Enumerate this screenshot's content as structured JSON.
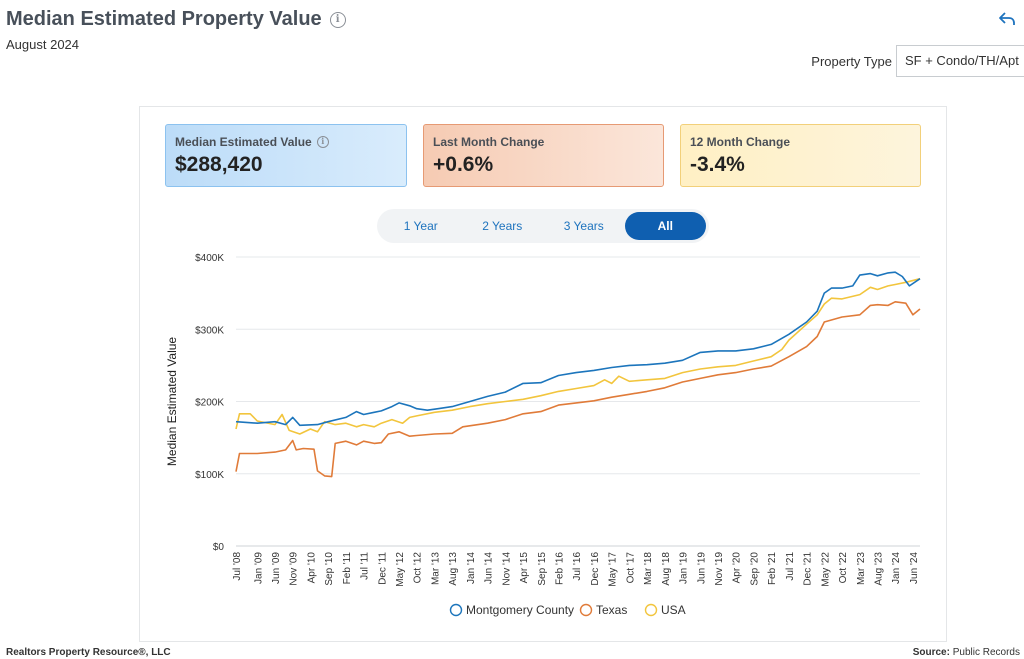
{
  "header": {
    "title": "Median Estimated Property Value",
    "subtitle": "August 2024"
  },
  "property_type": {
    "label": "Property Type",
    "value": "SF + Condo/TH/Apt"
  },
  "stats": [
    {
      "label": "Median Estimated Value",
      "value": "$288,420"
    },
    {
      "label": "Last Month Change",
      "value": "+0.6%"
    },
    {
      "label": "12 Month Change",
      "value": "-3.4%"
    }
  ],
  "tabs": [
    {
      "label": "1 Year",
      "active": false
    },
    {
      "label": "2 Years",
      "active": false
    },
    {
      "label": "3 Years",
      "active": false
    },
    {
      "label": "All",
      "active": true
    }
  ],
  "footer": {
    "left": "Realtors Property Resource®, LLC",
    "source_label": "Source:",
    "source_value": "Public Records"
  },
  "chart_data": {
    "type": "line",
    "ylabel": "Median Estimated Value",
    "ylim": [
      0,
      400000
    ],
    "y_ticks": [
      0,
      100000,
      200000,
      300000,
      400000
    ],
    "y_tick_labels": [
      "$0",
      "$100K",
      "$200K",
      "$300K",
      "$400K"
    ],
    "x_range": [
      "2008-07",
      "2024-08"
    ],
    "x_tick_labels": [
      "Jul '08",
      "Jan '09",
      "Jun '09",
      "Nov '09",
      "Apr '10",
      "Sep '10",
      "Feb '11",
      "Jul '11",
      "Dec '11",
      "May '12",
      "Oct '12",
      "Mar '13",
      "Aug '13",
      "Jan '14",
      "Jun '14",
      "Nov '14",
      "Apr '15",
      "Sep '15",
      "Feb '16",
      "Jul '16",
      "Dec '16",
      "May '17",
      "Oct '17",
      "Mar '18",
      "Aug '18",
      "Jan '19",
      "Jun '19",
      "Nov '19",
      "Apr '20",
      "Sep '20",
      "Feb '21",
      "Jul '21",
      "Dec '21",
      "May '22",
      "Oct '22",
      "Mar '23",
      "Aug '23",
      "Jan '24",
      "Jun '24"
    ],
    "x_ticks": [
      "2008-07",
      "2009-01",
      "2009-06",
      "2009-11",
      "2010-04",
      "2010-09",
      "2011-02",
      "2011-07",
      "2011-12",
      "2012-05",
      "2012-10",
      "2013-03",
      "2013-08",
      "2014-01",
      "2014-06",
      "2014-11",
      "2015-04",
      "2015-09",
      "2016-02",
      "2016-07",
      "2016-12",
      "2017-05",
      "2017-10",
      "2018-03",
      "2018-08",
      "2019-01",
      "2019-06",
      "2019-11",
      "2020-04",
      "2020-09",
      "2021-02",
      "2021-07",
      "2021-12",
      "2022-05",
      "2022-10",
      "2023-03",
      "2023-08",
      "2024-01",
      "2024-06"
    ],
    "grid": true,
    "legend_position": "bottom",
    "series": [
      {
        "name": "Montgomery County",
        "color": "#1c75bc",
        "points": [
          [
            "2008-07",
            172000
          ],
          [
            "2009-01",
            170000
          ],
          [
            "2009-06",
            172000
          ],
          [
            "2009-09",
            168000
          ],
          [
            "2009-11",
            178000
          ],
          [
            "2010-01",
            167000
          ],
          [
            "2010-06",
            168000
          ],
          [
            "2010-09",
            172000
          ],
          [
            "2011-02",
            178000
          ],
          [
            "2011-05",
            186000
          ],
          [
            "2011-07",
            182000
          ],
          [
            "2011-10",
            185000
          ],
          [
            "2011-12",
            187000
          ],
          [
            "2012-03",
            193000
          ],
          [
            "2012-05",
            198000
          ],
          [
            "2012-08",
            194000
          ],
          [
            "2012-10",
            190000
          ],
          [
            "2013-01",
            188000
          ],
          [
            "2013-04",
            190000
          ],
          [
            "2013-08",
            193000
          ],
          [
            "2014-01",
            200000
          ],
          [
            "2014-06",
            207000
          ],
          [
            "2014-11",
            213000
          ],
          [
            "2015-04",
            225000
          ],
          [
            "2015-09",
            226000
          ],
          [
            "2016-02",
            236000
          ],
          [
            "2016-07",
            240000
          ],
          [
            "2016-12",
            243000
          ],
          [
            "2017-05",
            247000
          ],
          [
            "2017-10",
            250000
          ],
          [
            "2018-03",
            251000
          ],
          [
            "2018-08",
            253000
          ],
          [
            "2019-01",
            257000
          ],
          [
            "2019-06",
            268000
          ],
          [
            "2019-11",
            270000
          ],
          [
            "2020-04",
            270000
          ],
          [
            "2020-09",
            273000
          ],
          [
            "2021-02",
            279000
          ],
          [
            "2021-07",
            293000
          ],
          [
            "2021-12",
            310000
          ],
          [
            "2022-03",
            325000
          ],
          [
            "2022-05",
            350000
          ],
          [
            "2022-07",
            357000
          ],
          [
            "2022-10",
            357000
          ],
          [
            "2023-01",
            360000
          ],
          [
            "2023-03",
            375000
          ],
          [
            "2023-06",
            377000
          ],
          [
            "2023-08",
            374000
          ],
          [
            "2023-11",
            378000
          ],
          [
            "2024-01",
            379000
          ],
          [
            "2024-03",
            373000
          ],
          [
            "2024-05",
            360000
          ],
          [
            "2024-08",
            370000
          ]
        ]
      },
      {
        "name": "Texas",
        "color": "#e07b39",
        "points": [
          [
            "2008-07",
            103000
          ],
          [
            "2008-08",
            128000
          ],
          [
            "2009-01",
            128000
          ],
          [
            "2009-06",
            130000
          ],
          [
            "2009-09",
            133000
          ],
          [
            "2009-11",
            146000
          ],
          [
            "2009-12",
            133000
          ],
          [
            "2010-02",
            135000
          ],
          [
            "2010-05",
            134000
          ],
          [
            "2010-06",
            104000
          ],
          [
            "2010-08",
            97000
          ],
          [
            "2010-10",
            96000
          ],
          [
            "2010-11",
            142000
          ],
          [
            "2011-02",
            145000
          ],
          [
            "2011-05",
            140000
          ],
          [
            "2011-07",
            145000
          ],
          [
            "2011-10",
            142000
          ],
          [
            "2011-12",
            143000
          ],
          [
            "2012-02",
            155000
          ],
          [
            "2012-05",
            158000
          ],
          [
            "2012-08",
            152000
          ],
          [
            "2012-10",
            153000
          ],
          [
            "2013-03",
            155000
          ],
          [
            "2013-08",
            156000
          ],
          [
            "2013-11",
            165000
          ],
          [
            "2014-06",
            170000
          ],
          [
            "2014-11",
            175000
          ],
          [
            "2015-04",
            183000
          ],
          [
            "2015-09",
            186000
          ],
          [
            "2016-02",
            195000
          ],
          [
            "2016-07",
            198000
          ],
          [
            "2016-12",
            201000
          ],
          [
            "2017-05",
            206000
          ],
          [
            "2017-10",
            210000
          ],
          [
            "2018-03",
            214000
          ],
          [
            "2018-08",
            219000
          ],
          [
            "2019-01",
            227000
          ],
          [
            "2019-06",
            232000
          ],
          [
            "2019-11",
            237000
          ],
          [
            "2020-04",
            240000
          ],
          [
            "2020-09",
            245000
          ],
          [
            "2021-02",
            249000
          ],
          [
            "2021-07",
            262000
          ],
          [
            "2021-12",
            276000
          ],
          [
            "2022-03",
            290000
          ],
          [
            "2022-05",
            310000
          ],
          [
            "2022-10",
            317000
          ],
          [
            "2023-03",
            320000
          ],
          [
            "2023-06",
            333000
          ],
          [
            "2023-08",
            334000
          ],
          [
            "2023-11",
            333000
          ],
          [
            "2024-01",
            338000
          ],
          [
            "2024-04",
            336000
          ],
          [
            "2024-06",
            320000
          ],
          [
            "2024-08",
            328000
          ]
        ]
      },
      {
        "name": "USA",
        "color": "#f2c53d",
        "points": [
          [
            "2008-07",
            162000
          ],
          [
            "2008-08",
            183000
          ],
          [
            "2008-11",
            183000
          ],
          [
            "2009-01",
            173000
          ],
          [
            "2009-06",
            168000
          ],
          [
            "2009-08",
            182000
          ],
          [
            "2009-10",
            160000
          ],
          [
            "2010-01",
            155000
          ],
          [
            "2010-04",
            162000
          ],
          [
            "2010-06",
            158000
          ],
          [
            "2010-08",
            172000
          ],
          [
            "2010-11",
            168000
          ],
          [
            "2011-02",
            170000
          ],
          [
            "2011-05",
            165000
          ],
          [
            "2011-07",
            168000
          ],
          [
            "2011-10",
            165000
          ],
          [
            "2011-12",
            170000
          ],
          [
            "2012-03",
            175000
          ],
          [
            "2012-06",
            170000
          ],
          [
            "2012-08",
            178000
          ],
          [
            "2012-10",
            180000
          ],
          [
            "2013-03",
            185000
          ],
          [
            "2013-08",
            188000
          ],
          [
            "2014-01",
            193000
          ],
          [
            "2014-06",
            197000
          ],
          [
            "2014-11",
            200000
          ],
          [
            "2015-04",
            203000
          ],
          [
            "2015-09",
            208000
          ],
          [
            "2016-02",
            214000
          ],
          [
            "2016-07",
            218000
          ],
          [
            "2016-12",
            222000
          ],
          [
            "2017-03",
            230000
          ],
          [
            "2017-05",
            225000
          ],
          [
            "2017-07",
            235000
          ],
          [
            "2017-10",
            228000
          ],
          [
            "2018-03",
            230000
          ],
          [
            "2018-08",
            232000
          ],
          [
            "2019-01",
            240000
          ],
          [
            "2019-06",
            245000
          ],
          [
            "2019-11",
            248000
          ],
          [
            "2020-04",
            250000
          ],
          [
            "2020-09",
            256000
          ],
          [
            "2021-02",
            262000
          ],
          [
            "2021-05",
            272000
          ],
          [
            "2021-07",
            285000
          ],
          [
            "2021-12",
            307000
          ],
          [
            "2022-03",
            320000
          ],
          [
            "2022-05",
            335000
          ],
          [
            "2022-07",
            343000
          ],
          [
            "2022-10",
            342000
          ],
          [
            "2023-03",
            348000
          ],
          [
            "2023-06",
            358000
          ],
          [
            "2023-08",
            355000
          ],
          [
            "2023-11",
            360000
          ],
          [
            "2024-01",
            362000
          ],
          [
            "2024-04",
            365000
          ],
          [
            "2024-08",
            370000
          ]
        ]
      }
    ]
  }
}
